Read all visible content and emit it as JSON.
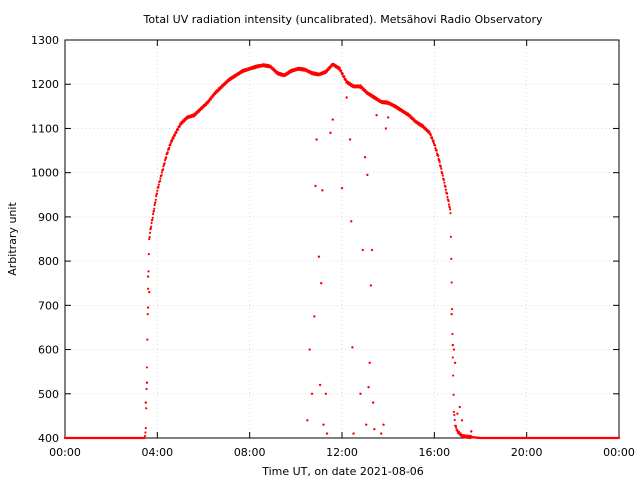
{
  "chart_data": {
    "type": "scatter",
    "title": "Total UV radiation intensity (uncalibrated). Metsähovi Radio Observatory",
    "xlabel": "Time UT, on date 2021-08-06",
    "ylabel": "Arbitrary unit",
    "xlim": [
      0,
      24
    ],
    "ylim": [
      400,
      1300
    ],
    "x_ticks": [
      {
        "value": 0,
        "label": "00:00"
      },
      {
        "value": 4,
        "label": "04:00"
      },
      {
        "value": 8,
        "label": "08:00"
      },
      {
        "value": 12,
        "label": "12:00"
      },
      {
        "value": 16,
        "label": "16:00"
      },
      {
        "value": 20,
        "label": "20:00"
      },
      {
        "value": 24,
        "label": "00:00"
      }
    ],
    "y_ticks": [
      400,
      500,
      600,
      700,
      800,
      900,
      1000,
      1100,
      1200,
      1300
    ],
    "grid": true,
    "marker_color": "#ff0000",
    "series": [
      {
        "curve": [
          [
            0,
            400
          ],
          [
            1,
            400
          ],
          [
            2,
            400
          ],
          [
            3,
            400
          ],
          [
            3.45,
            400
          ],
          [
            3.5,
            420
          ],
          [
            3.55,
            560
          ],
          [
            3.6,
            740
          ],
          [
            3.65,
            850
          ],
          [
            3.7,
            870
          ],
          [
            3.8,
            900
          ],
          [
            3.9,
            930
          ],
          [
            4.0,
            960
          ],
          [
            4.2,
            1000
          ],
          [
            4.4,
            1040
          ],
          [
            4.6,
            1070
          ],
          [
            4.8,
            1090
          ],
          [
            5.0,
            1110
          ],
          [
            5.3,
            1125
          ],
          [
            5.6,
            1130
          ],
          [
            5.9,
            1145
          ],
          [
            6.2,
            1160
          ],
          [
            6.5,
            1180
          ],
          [
            6.8,
            1195
          ],
          [
            7.1,
            1210
          ],
          [
            7.4,
            1220
          ],
          [
            7.7,
            1230
          ],
          [
            8.0,
            1235
          ],
          [
            8.3,
            1240
          ],
          [
            8.6,
            1243
          ],
          [
            8.9,
            1240
          ],
          [
            9.2,
            1225
          ],
          [
            9.5,
            1220
          ],
          [
            9.8,
            1230
          ],
          [
            10.1,
            1235
          ],
          [
            10.4,
            1233
          ],
          [
            10.7,
            1225
          ],
          [
            11.0,
            1222
          ],
          [
            11.3,
            1228
          ],
          [
            11.6,
            1245
          ],
          [
            11.9,
            1235
          ],
          [
            12.2,
            1205
          ],
          [
            12.5,
            1195
          ],
          [
            12.8,
            1195
          ],
          [
            13.1,
            1180
          ],
          [
            13.4,
            1170
          ],
          [
            13.7,
            1160
          ],
          [
            14.0,
            1158
          ],
          [
            14.3,
            1150
          ],
          [
            14.6,
            1140
          ],
          [
            14.9,
            1130
          ],
          [
            15.2,
            1115
          ],
          [
            15.5,
            1105
          ],
          [
            15.8,
            1090
          ],
          [
            16.0,
            1065
          ],
          [
            16.2,
            1030
          ],
          [
            16.4,
            985
          ],
          [
            16.55,
            950
          ],
          [
            16.65,
            925
          ],
          [
            16.7,
            910
          ],
          [
            16.75,
            750
          ],
          [
            16.8,
            580
          ],
          [
            16.85,
            460
          ],
          [
            16.9,
            430
          ],
          [
            17.0,
            415
          ],
          [
            17.2,
            405
          ],
          [
            17.4,
            403
          ],
          [
            17.6,
            402
          ],
          [
            18,
            400
          ],
          [
            20,
            400
          ],
          [
            22,
            400
          ],
          [
            24,
            400
          ]
        ],
        "scatter": [
          [
            3.5,
            480
          ],
          [
            3.55,
            525
          ],
          [
            3.6,
            695
          ],
          [
            3.6,
            765
          ],
          [
            3.65,
            730
          ],
          [
            10.5,
            440
          ],
          [
            10.6,
            600
          ],
          [
            10.7,
            500
          ],
          [
            10.8,
            675
          ],
          [
            10.85,
            970
          ],
          [
            10.9,
            1075
          ],
          [
            11.0,
            810
          ],
          [
            11.05,
            520
          ],
          [
            11.1,
            750
          ],
          [
            11.15,
            960
          ],
          [
            11.2,
            430
          ],
          [
            11.3,
            500
          ],
          [
            11.35,
            410
          ],
          [
            11.5,
            1090
          ],
          [
            11.6,
            1120
          ],
          [
            12.0,
            965
          ],
          [
            12.2,
            1170
          ],
          [
            12.35,
            1075
          ],
          [
            12.4,
            890
          ],
          [
            12.45,
            605
          ],
          [
            12.5,
            410
          ],
          [
            12.8,
            500
          ],
          [
            12.9,
            825
          ],
          [
            13.0,
            1035
          ],
          [
            13.05,
            430
          ],
          [
            13.1,
            995
          ],
          [
            13.15,
            515
          ],
          [
            13.2,
            570
          ],
          [
            13.25,
            745
          ],
          [
            13.3,
            825
          ],
          [
            13.35,
            480
          ],
          [
            13.4,
            420
          ],
          [
            13.5,
            1130
          ],
          [
            13.7,
            410
          ],
          [
            13.8,
            430
          ],
          [
            13.9,
            1100
          ],
          [
            14.0,
            1125
          ],
          [
            16.75,
            680
          ],
          [
            16.8,
            610
          ],
          [
            16.85,
            600
          ],
          [
            16.9,
            570
          ],
          [
            17.0,
            455
          ],
          [
            17.1,
            470
          ],
          [
            17.2,
            440
          ],
          [
            17.6,
            415
          ]
        ]
      }
    ]
  }
}
